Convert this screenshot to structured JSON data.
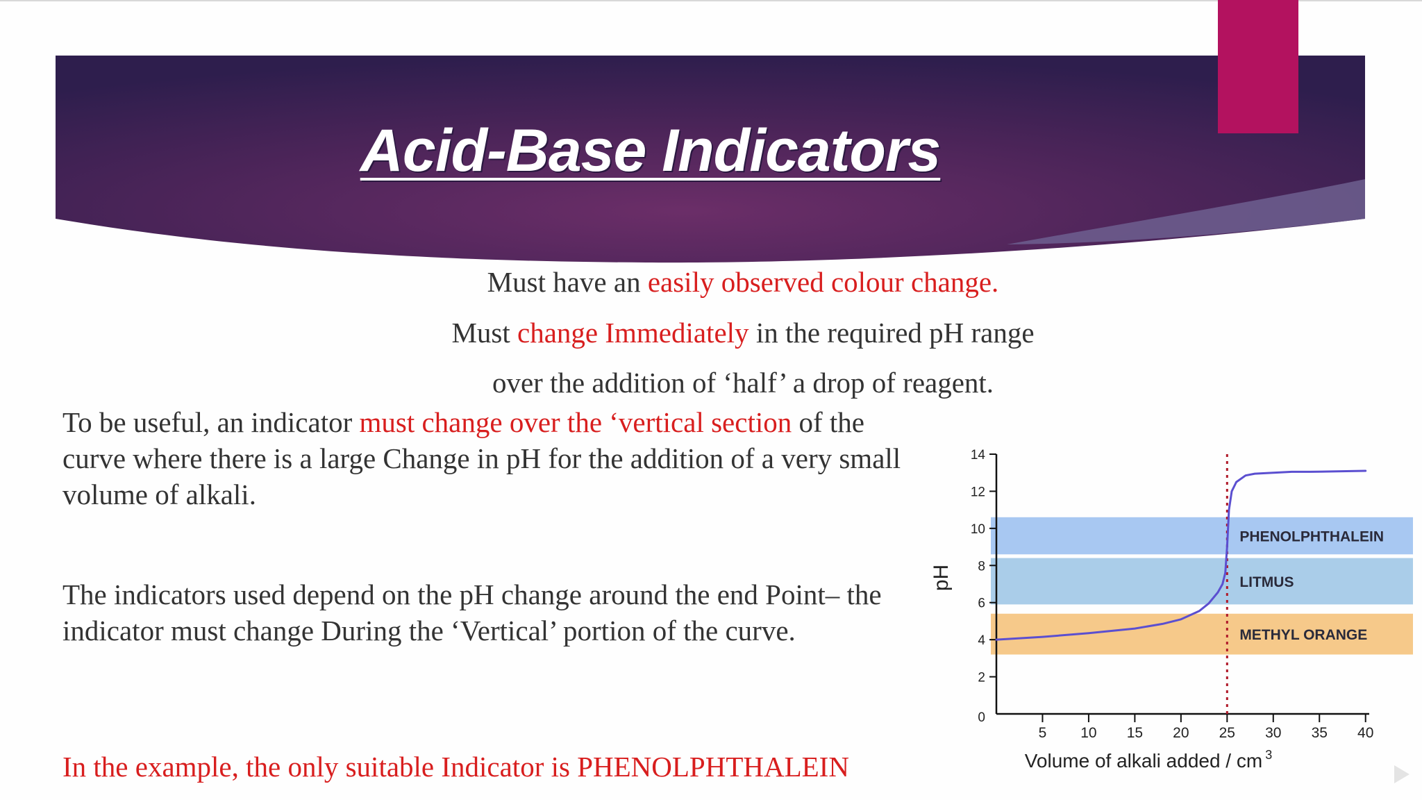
{
  "slide": {
    "title": "Acid-Base Indicators",
    "accent_color": "#b3125f",
    "banner_colors": [
      "#3b1f55",
      "#6b2e68",
      "#2e1e4d"
    ],
    "highlight_color": "#d81e1e"
  },
  "criteria": {
    "line1_pre": "Must have an ",
    "line1_hl": "easily observed colour change.",
    "line2_pre": "Must ",
    "line2_hl": "change Immediately",
    "line2_post": " in the required pH range",
    "line3": "over the addition of ‘half’ a drop of reagent."
  },
  "paragraph1": {
    "pre": "To be useful, an indicator ",
    "hl": "must change over the ‘vertical section",
    "post": " of the curve where there is a large Change in pH for the addition of a very small volume of alkali."
  },
  "paragraph2": "The indicators used depend on the pH change around the end Point– the indicator must change During the ‘Vertical’ portion of the curve.",
  "paragraph3": "In the example, the only suitable Indicator is PHENOLPHTHALEIN",
  "chart_data": {
    "type": "line",
    "ylabel": "pH",
    "xlabel": "Volume of alkali added / cm",
    "xlabel_sup": "3",
    "x_ticks": [
      5,
      10,
      15,
      20,
      25,
      30,
      35,
      40
    ],
    "y_ticks": [
      0,
      2,
      4,
      6,
      8,
      10,
      12,
      14
    ],
    "xlim": [
      0,
      41
    ],
    "ylim": [
      0,
      14
    ],
    "equivalence_x": 25,
    "curve_color": "#5b4fd0",
    "curve": {
      "x": [
        0,
        5,
        10,
        15,
        18,
        20,
        22,
        23,
        24,
        24.5,
        24.8,
        25,
        25.2,
        25.5,
        26,
        27,
        28,
        30,
        32,
        34,
        40
      ],
      "y": [
        4.0,
        4.15,
        4.35,
        4.6,
        4.85,
        5.1,
        5.55,
        5.95,
        6.55,
        7.0,
        7.6,
        9.0,
        11.0,
        12.0,
        12.5,
        12.85,
        12.95,
        13.0,
        13.05,
        13.05,
        13.1
      ]
    },
    "bands": [
      {
        "label": "PHENOLPHTHALEIN",
        "range": [
          8.6,
          10.6
        ],
        "color": "#a8c8f2"
      },
      {
        "label": "LITMUS",
        "range": [
          5.9,
          8.4
        ],
        "color": "#aacde9"
      },
      {
        "label": "METHYL ORANGE",
        "range": [
          3.2,
          5.4
        ],
        "color": "#f6c98a"
      }
    ]
  }
}
